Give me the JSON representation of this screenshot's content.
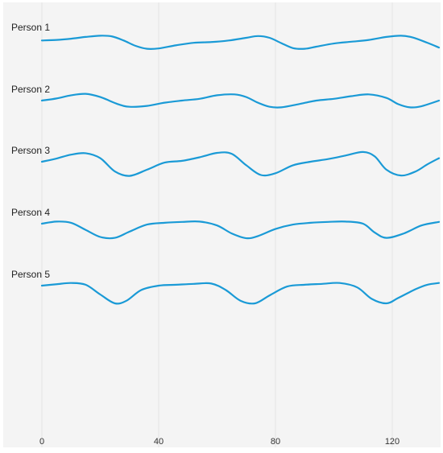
{
  "chart_data": {
    "type": "line",
    "title": "",
    "xlabel": "",
    "ylabel": "",
    "xlim": [
      0,
      136
    ],
    "x_ticks": [
      0,
      40,
      80,
      120
    ],
    "grid": true,
    "line_color": "#1a9ad6",
    "background": "#f4f4f4",
    "series": [
      {
        "name": "Person 1",
        "points": [
          [
            0,
            0.15
          ],
          [
            5,
            0.12
          ],
          [
            10,
            0.05
          ],
          [
            15,
            -0.05
          ],
          [
            20,
            -0.12
          ],
          [
            24,
            -0.08
          ],
          [
            28,
            0.15
          ],
          [
            32,
            0.45
          ],
          [
            36,
            0.62
          ],
          [
            40,
            0.6
          ],
          [
            46,
            0.42
          ],
          [
            52,
            0.28
          ],
          [
            58,
            0.24
          ],
          [
            64,
            0.15
          ],
          [
            70,
            0.0
          ],
          [
            74,
            -0.1
          ],
          [
            78,
            0.0
          ],
          [
            82,
            0.3
          ],
          [
            86,
            0.58
          ],
          [
            90,
            0.62
          ],
          [
            94,
            0.5
          ],
          [
            100,
            0.32
          ],
          [
            106,
            0.22
          ],
          [
            112,
            0.12
          ],
          [
            118,
            -0.05
          ],
          [
            123,
            -0.12
          ],
          [
            127,
            -0.02
          ],
          [
            132,
            0.28
          ],
          [
            136,
            0.55
          ]
        ]
      },
      {
        "name": "Person 2",
        "points": [
          [
            0,
            0.0
          ],
          [
            5,
            -0.12
          ],
          [
            10,
            -0.3
          ],
          [
            15,
            -0.38
          ],
          [
            20,
            -0.2
          ],
          [
            26,
            0.2
          ],
          [
            30,
            0.35
          ],
          [
            36,
            0.3
          ],
          [
            42,
            0.12
          ],
          [
            48,
            0.0
          ],
          [
            54,
            -0.1
          ],
          [
            60,
            -0.3
          ],
          [
            66,
            -0.35
          ],
          [
            70,
            -0.2
          ],
          [
            74,
            0.12
          ],
          [
            78,
            0.35
          ],
          [
            82,
            0.38
          ],
          [
            88,
            0.2
          ],
          [
            94,
            0.0
          ],
          [
            100,
            -0.1
          ],
          [
            106,
            -0.25
          ],
          [
            112,
            -0.35
          ],
          [
            118,
            -0.15
          ],
          [
            122,
            0.2
          ],
          [
            126,
            0.38
          ],
          [
            130,
            0.32
          ],
          [
            136,
            0.0
          ]
        ]
      },
      {
        "name": "Person 3",
        "points": [
          [
            0,
            0.0
          ],
          [
            5,
            -0.18
          ],
          [
            10,
            -0.4
          ],
          [
            15,
            -0.48
          ],
          [
            20,
            -0.2
          ],
          [
            25,
            0.55
          ],
          [
            30,
            0.8
          ],
          [
            36,
            0.45
          ],
          [
            42,
            0.05
          ],
          [
            48,
            -0.05
          ],
          [
            54,
            -0.25
          ],
          [
            60,
            -0.5
          ],
          [
            65,
            -0.45
          ],
          [
            70,
            0.2
          ],
          [
            75,
            0.75
          ],
          [
            80,
            0.65
          ],
          [
            86,
            0.2
          ],
          [
            92,
            0.0
          ],
          [
            98,
            -0.15
          ],
          [
            104,
            -0.35
          ],
          [
            110,
            -0.55
          ],
          [
            114,
            -0.3
          ],
          [
            118,
            0.45
          ],
          [
            123,
            0.78
          ],
          [
            128,
            0.55
          ],
          [
            132,
            0.15
          ],
          [
            136,
            -0.2
          ]
        ]
      },
      {
        "name": "Person 4",
        "points": [
          [
            0,
            0.0
          ],
          [
            5,
            -0.12
          ],
          [
            10,
            -0.05
          ],
          [
            15,
            0.35
          ],
          [
            20,
            0.75
          ],
          [
            25,
            0.8
          ],
          [
            30,
            0.45
          ],
          [
            36,
            0.05
          ],
          [
            42,
            -0.05
          ],
          [
            48,
            -0.1
          ],
          [
            54,
            -0.12
          ],
          [
            60,
            0.1
          ],
          [
            65,
            0.55
          ],
          [
            70,
            0.82
          ],
          [
            74,
            0.7
          ],
          [
            80,
            0.3
          ],
          [
            86,
            0.05
          ],
          [
            92,
            -0.05
          ],
          [
            98,
            -0.1
          ],
          [
            104,
            -0.12
          ],
          [
            110,
            0.0
          ],
          [
            114,
            0.5
          ],
          [
            118,
            0.8
          ],
          [
            124,
            0.55
          ],
          [
            130,
            0.1
          ],
          [
            136,
            -0.1
          ]
        ]
      },
      {
        "name": "Person 5",
        "points": [
          [
            0,
            0.0
          ],
          [
            5,
            -0.08
          ],
          [
            10,
            -0.15
          ],
          [
            15,
            -0.05
          ],
          [
            20,
            0.5
          ],
          [
            25,
            1.0
          ],
          [
            29,
            0.85
          ],
          [
            34,
            0.25
          ],
          [
            40,
            0.0
          ],
          [
            46,
            -0.05
          ],
          [
            52,
            -0.1
          ],
          [
            58,
            -0.12
          ],
          [
            63,
            0.25
          ],
          [
            68,
            0.85
          ],
          [
            73,
            1.0
          ],
          [
            78,
            0.55
          ],
          [
            84,
            0.05
          ],
          [
            90,
            -0.05
          ],
          [
            96,
            -0.1
          ],
          [
            102,
            -0.15
          ],
          [
            108,
            0.1
          ],
          [
            113,
            0.75
          ],
          [
            118,
            1.0
          ],
          [
            122,
            0.7
          ],
          [
            128,
            0.2
          ],
          [
            132,
            -0.05
          ],
          [
            136,
            -0.15
          ]
        ]
      }
    ]
  }
}
